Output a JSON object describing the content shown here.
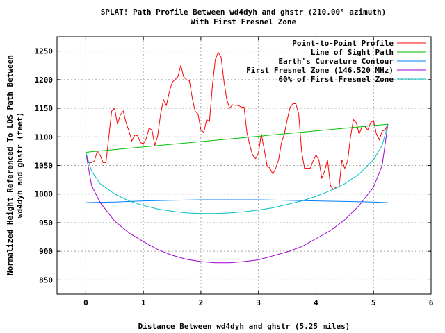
{
  "chart_data": {
    "type": "line",
    "title": "SPLAT! Path Profile Between wd4dyh and ghstr (210.00° azimuth)",
    "subtitle": "With First Fresnel Zone",
    "xlabel": "Distance Between wd4dyh and ghstr (5.25 miles)",
    "ylabel_line1": "Normalized Height Referenced To LOS Path Between",
    "ylabel_line2": "wd4dyh and ghstr (feet)",
    "xlim": [
      -0.5,
      6
    ],
    "ylim": [
      825,
      1275
    ],
    "xticks": [
      0,
      1,
      2,
      3,
      4,
      5,
      6
    ],
    "yticks": [
      850,
      900,
      950,
      1000,
      1050,
      1100,
      1150,
      1200,
      1250
    ],
    "grid": true,
    "legend_position": "top-right",
    "series": [
      {
        "name": "Point-to-Point Profile",
        "color": "#ff0000",
        "x": [
          0,
          0.05,
          0.1,
          0.15,
          0.2,
          0.25,
          0.3,
          0.35,
          0.4,
          0.45,
          0.5,
          0.55,
          0.6,
          0.65,
          0.7,
          0.75,
          0.8,
          0.85,
          0.9,
          0.95,
          1.0,
          1.05,
          1.1,
          1.15,
          1.2,
          1.25,
          1.3,
          1.35,
          1.4,
          1.45,
          1.5,
          1.55,
          1.6,
          1.65,
          1.7,
          1.75,
          1.8,
          1.85,
          1.9,
          1.95,
          2.0,
          2.05,
          2.1,
          2.15,
          2.2,
          2.25,
          2.3,
          2.35,
          2.4,
          2.45,
          2.5,
          2.55,
          2.6,
          2.65,
          2.7,
          2.75,
          2.8,
          2.85,
          2.9,
          2.95,
          3.0,
          3.05,
          3.1,
          3.15,
          3.2,
          3.25,
          3.3,
          3.35,
          3.4,
          3.45,
          3.5,
          3.55,
          3.6,
          3.65,
          3.7,
          3.75,
          3.8,
          3.85,
          3.9,
          3.95,
          4.0,
          4.05,
          4.1,
          4.15,
          4.2,
          4.25,
          4.3,
          4.35,
          4.4,
          4.45,
          4.5,
          4.55,
          4.6,
          4.65,
          4.7,
          4.75,
          4.8,
          4.85,
          4.9,
          4.95,
          5.0,
          5.05,
          5.1,
          5.15,
          5.2,
          5.25
        ],
        "y": [
          1072,
          1055,
          1055,
          1058,
          1075,
          1068,
          1055,
          1055,
          1100,
          1145,
          1150,
          1122,
          1138,
          1145,
          1125,
          1110,
          1093,
          1103,
          1102,
          1090,
          1088,
          1097,
          1115,
          1112,
          1085,
          1102,
          1140,
          1165,
          1155,
          1178,
          1195,
          1200,
          1205,
          1225,
          1205,
          1200,
          1198,
          1168,
          1145,
          1140,
          1112,
          1108,
          1130,
          1127,
          1190,
          1235,
          1248,
          1240,
          1198,
          1165,
          1150,
          1156,
          1155,
          1155,
          1152,
          1152,
          1108,
          1085,
          1068,
          1062,
          1072,
          1105,
          1078,
          1050,
          1045,
          1035,
          1045,
          1060,
          1090,
          1105,
          1130,
          1152,
          1158,
          1158,
          1140,
          1075,
          1045,
          1045,
          1045,
          1058,
          1068,
          1060,
          1028,
          1040,
          1060,
          1015,
          1008,
          1012,
          1012,
          1060,
          1045,
          1058,
          1100,
          1130,
          1125,
          1105,
          1118,
          1118,
          1112,
          1125,
          1128,
          1105,
          1095,
          1110,
          1112,
          1122
        ]
      },
      {
        "name": "Line of Sight Path",
        "color": "#00c000",
        "x": [
          0,
          5.25
        ],
        "y": [
          1073,
          1122
        ]
      },
      {
        "name": "Earth's Curvature Contour",
        "color": "#0080ff",
        "x": [
          0,
          0.5,
          1.0,
          1.5,
          2.0,
          2.5,
          3.0,
          3.5,
          4.0,
          4.5,
          5.0,
          5.25
        ],
        "y": [
          985,
          986,
          988,
          989,
          990,
          990,
          990,
          989,
          988,
          987,
          986,
          985
        ]
      },
      {
        "name": "First Fresnel Zone (146.520 MHz)",
        "color": "#a000d0",
        "x": [
          0,
          0.1,
          0.25,
          0.5,
          0.75,
          1.0,
          1.25,
          1.5,
          1.75,
          2.0,
          2.25,
          2.5,
          2.75,
          3.0,
          3.25,
          3.5,
          3.75,
          4.0,
          4.25,
          4.5,
          4.75,
          5.0,
          5.15,
          5.25
        ],
        "y": [
          1073,
          1015,
          985,
          953,
          932,
          917,
          903,
          893,
          886,
          882,
          880,
          880,
          882,
          885,
          892,
          899,
          908,
          922,
          936,
          955,
          980,
          1012,
          1050,
          1122
        ]
      },
      {
        "name": "60% of First Fresnel Zone",
        "color": "#00c0c0",
        "x": [
          0,
          0.1,
          0.25,
          0.5,
          0.75,
          1.0,
          1.25,
          1.5,
          1.75,
          2.0,
          2.25,
          2.5,
          2.75,
          3.0,
          3.25,
          3.5,
          3.75,
          4.0,
          4.25,
          4.5,
          4.75,
          5.0,
          5.15,
          5.25
        ],
        "y": [
          1073,
          1040,
          1018,
          1000,
          988,
          980,
          974,
          970,
          967,
          966,
          966,
          967,
          969,
          972,
          976,
          982,
          988,
          996,
          1006,
          1018,
          1035,
          1060,
          1085,
          1122
        ]
      }
    ]
  }
}
